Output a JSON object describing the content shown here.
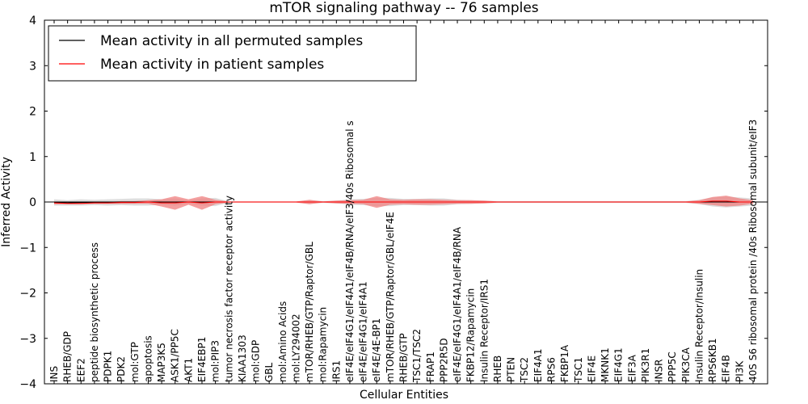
{
  "chart_data": {
    "type": "line",
    "title": "mTOR signaling pathway -- 76 samples",
    "xlabel": "Cellular Entities",
    "ylabel": "Inferred Activity",
    "ylim": [
      -4,
      4
    ],
    "yticks": [
      -4,
      -3,
      -2,
      -1,
      0,
      1,
      2,
      3,
      4
    ],
    "grid": false,
    "legend_position": "top-left",
    "colors": {
      "permuted": "#000000",
      "patient": "#ff0000",
      "permuted_band": "#d3d3d3",
      "patient_band": "#f08080"
    },
    "categories": [
      "INS",
      "RHEB/GDP",
      "EEF2",
      "peptide biosynthetic process",
      "PDPK1",
      "PDK2",
      "mol:GTP",
      "apoptosis",
      "MAP3K5",
      "ASK1/PP5C",
      "AKT1",
      "EIF4EBP1",
      "mol:PIP3",
      "tumor necrosis factor receptor activity",
      "KIAA1303",
      "mol:GDP",
      "GBL",
      "mol:Amino Acids",
      "mol:LY294002",
      "mTOR/RHEB/GTP/Raptor/GBL",
      "mol:Rapamycin",
      "IRS1",
      "eIF4E/eIF4G1/eIF4A1/eIF4B/RNA/eIF3/40s Ribosomal s",
      "eIF4E/eIF4G1/eIF4A1",
      "eIF4E/4E-BP1",
      "mTOR/RHEB/GTP/Raptor/GBL/eIF4E",
      "RHEB/GTP",
      "TSC1/TSC2",
      "FRAP1",
      "PPP2R5D",
      "eIF4E/eIF4G1/eIF4A1/eIF4B/RNA",
      "FKBP12/Rapamycin",
      "Insulin Receptor/IRS1",
      "RHEB",
      "PTEN",
      "TSC2",
      "EIF4A1",
      "RPS6",
      "FKBP1A",
      "TSC1",
      "EIF4E",
      "MKNK1",
      "EIF4G1",
      "EIF3A",
      "PIK3R1",
      "INSR",
      "PPP5C",
      "PIK3CA",
      "Insulin Receptor/Insulin",
      "RPS6KB1",
      "EIF4B",
      "PI3K",
      "40S S6 ribosomal protein /40s Ribosomal subunit/eIF3"
    ],
    "series": [
      {
        "name": "Mean activity in all permuted samples",
        "values": [
          -0.01,
          -0.02,
          -0.01,
          -0.01,
          -0.01,
          0.0,
          0.0,
          0.0,
          0.0,
          0.0,
          0.0,
          0.0,
          0.0,
          0.0,
          0.0,
          0.0,
          0.0,
          0.0,
          0.0,
          0.0,
          0.0,
          0.0,
          0.0,
          0.0,
          0.0,
          0.0,
          0.0,
          0.0,
          0.0,
          0.0,
          0.0,
          0.0,
          0.0,
          0.0,
          0.0,
          0.0,
          0.0,
          0.0,
          0.0,
          0.0,
          0.0,
          0.0,
          0.0,
          0.0,
          0.0,
          0.0,
          0.0,
          0.0,
          0.0,
          0.0,
          0.0,
          0.0,
          0.0
        ],
        "band": [
          0.07,
          0.06,
          0.07,
          0.06,
          0.07,
          0.07,
          0.08,
          0.08,
          0.06,
          0.08,
          0.04,
          0.08,
          0.09,
          0.01,
          0.01,
          0.01,
          0.01,
          0.01,
          0.01,
          0.04,
          0.02,
          0.03,
          0.06,
          0.07,
          0.09,
          0.09,
          0.07,
          0.07,
          0.08,
          0.08,
          0.05,
          0.04,
          0.03,
          0.02,
          0.02,
          0.02,
          0.02,
          0.02,
          0.02,
          0.02,
          0.02,
          0.02,
          0.02,
          0.02,
          0.02,
          0.02,
          0.02,
          0.02,
          0.05,
          0.1,
          0.12,
          0.1,
          0.08
        ]
      },
      {
        "name": "Mean activity in patient samples",
        "values": [
          -0.02,
          -0.03,
          -0.03,
          -0.02,
          -0.02,
          -0.01,
          -0.01,
          0.0,
          -0.02,
          -0.02,
          0.0,
          -0.02,
          0.0,
          0.0,
          0.0,
          0.0,
          0.0,
          0.0,
          0.0,
          0.0,
          0.0,
          0.0,
          0.0,
          0.0,
          0.0,
          0.0,
          0.0,
          0.0,
          0.0,
          0.0,
          0.0,
          0.0,
          0.0,
          0.0,
          0.0,
          0.0,
          0.0,
          0.0,
          0.0,
          0.0,
          0.0,
          0.0,
          0.0,
          0.0,
          0.0,
          0.0,
          0.0,
          0.0,
          0.0,
          0.02,
          0.02,
          0.0,
          0.0
        ],
        "band": [
          0.03,
          0.02,
          0.02,
          0.02,
          0.02,
          0.03,
          0.03,
          0.04,
          0.08,
          0.15,
          0.06,
          0.15,
          0.05,
          0.01,
          0.01,
          0.01,
          0.01,
          0.01,
          0.01,
          0.05,
          0.01,
          0.03,
          0.04,
          0.05,
          0.13,
          0.06,
          0.05,
          0.06,
          0.06,
          0.05,
          0.04,
          0.04,
          0.03,
          0.01,
          0.01,
          0.01,
          0.01,
          0.01,
          0.01,
          0.01,
          0.01,
          0.01,
          0.01,
          0.01,
          0.01,
          0.01,
          0.01,
          0.01,
          0.04,
          0.09,
          0.12,
          0.08,
          0.04
        ]
      }
    ]
  }
}
